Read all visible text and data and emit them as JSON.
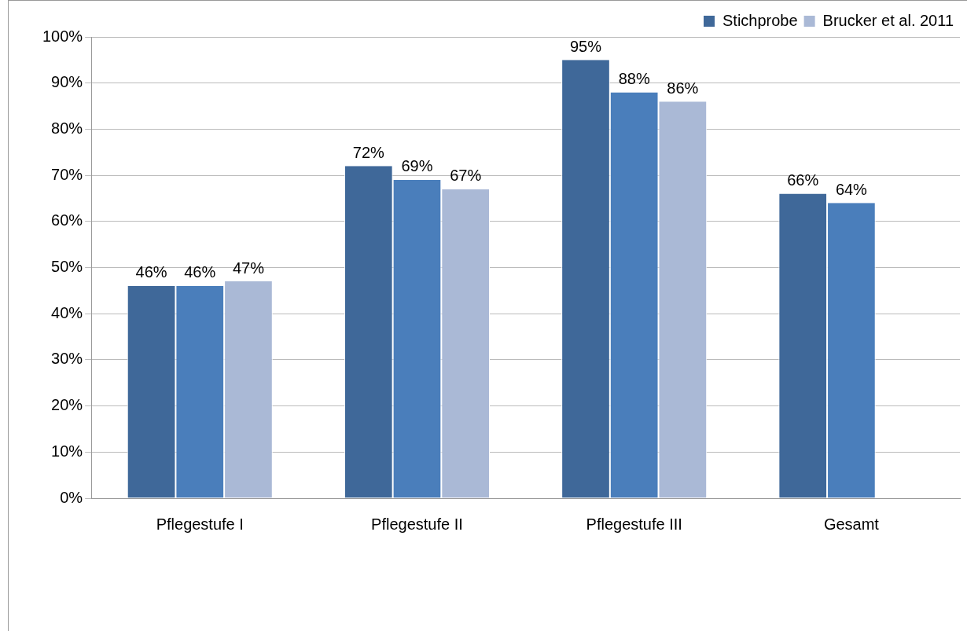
{
  "chart_data": {
    "type": "bar",
    "categories": [
      "Pflegestufe I",
      "Pflegestufe II",
      "Pflegestufe III",
      "Gesamt"
    ],
    "series": [
      {
        "name": "Stichprobe",
        "color": "#3f6899",
        "values": [
          46,
          72,
          95,
          66
        ],
        "value_labels": [
          "46%",
          "72%",
          "95%",
          "66%"
        ]
      },
      {
        "color": "#4a7ebb",
        "values": [
          46,
          69,
          88,
          64
        ],
        "value_labels": [
          "46%",
          "69%",
          "88%",
          "64%"
        ]
      },
      {
        "name": "Brucker et al. 2011",
        "color": "#aab9d6",
        "values": [
          47,
          67,
          86,
          null
        ],
        "value_labels": [
          "47%",
          "67%",
          "86%",
          null
        ]
      }
    ],
    "ylim": [
      0,
      100
    ],
    "yticks": [
      {
        "value": 0,
        "label": "0%"
      },
      {
        "value": 10,
        "label": "10%"
      },
      {
        "value": 20,
        "label": "20%"
      },
      {
        "value": 30,
        "label": "30%"
      },
      {
        "value": 40,
        "label": "40%"
      },
      {
        "value": 50,
        "label": "50%"
      },
      {
        "value": 60,
        "label": "60%"
      },
      {
        "value": 70,
        "label": "70%"
      },
      {
        "value": 80,
        "label": "80%"
      },
      {
        "value": 90,
        "label": "90%"
      },
      {
        "value": 100,
        "label": "100%"
      }
    ],
    "grid": "y",
    "legend": "top right"
  }
}
